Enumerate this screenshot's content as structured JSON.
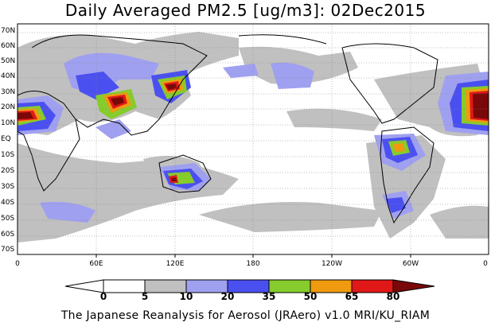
{
  "title": "Daily Averaged PM2.5 [ug/m3]: 02Dec2015",
  "footer": "The Japanese Reanalysis for Aerosol (JRAero) v1.0 MRI/KU_RIAM",
  "lat_labels": [
    "70N",
    "60N",
    "50N",
    "40N",
    "30N",
    "20N",
    "10N",
    "EQ",
    "10S",
    "20S",
    "30S",
    "40S",
    "50S",
    "60S",
    "70S"
  ],
  "lon_labels": [
    "0",
    "60E",
    "120E",
    "180",
    "120W",
    "60W",
    "0"
  ],
  "colorbar": {
    "labels": [
      "0",
      "5",
      "10",
      "20",
      "35",
      "50",
      "65",
      "80"
    ],
    "colors": [
      "#ffffff",
      "#c0c0c0",
      "#a0a0f0",
      "#4a50f0",
      "#86cc2c",
      "#f09a10",
      "#e01818",
      "#7a0808"
    ]
  }
}
